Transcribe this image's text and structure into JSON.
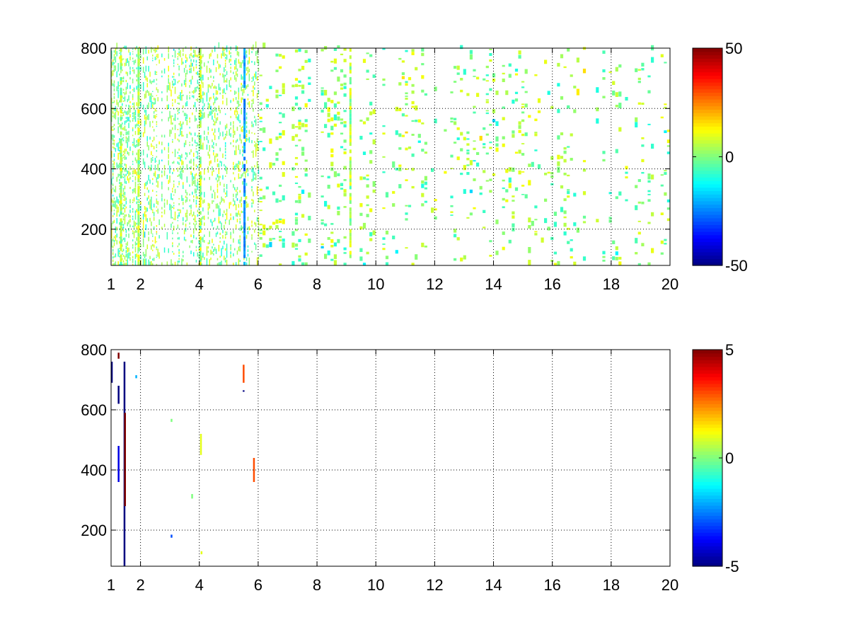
{
  "chart_data": [
    {
      "type": "heatmap",
      "title": "",
      "xlabel": "",
      "ylabel": "",
      "xlim": [
        1,
        20
      ],
      "ylim": [
        80,
        800
      ],
      "x_ticks": [
        1,
        2,
        4,
        6,
        8,
        10,
        12,
        14,
        16,
        18,
        20
      ],
      "x_tick_labels": [
        "1",
        "2",
        "4",
        "6",
        "8",
        "10",
        "12",
        "14",
        "16",
        "18",
        "20"
      ],
      "y_ticks": [
        200,
        400,
        600,
        800
      ],
      "y_tick_labels": [
        "200",
        "400",
        "600",
        "800"
      ],
      "grid": true,
      "colormap": "jet",
      "clim": [
        -50,
        50
      ],
      "colorbar_ticks": [
        -50,
        0,
        50
      ],
      "colorbar_tick_labels": [
        "-50",
        "0",
        "50"
      ],
      "background": "#ffffff",
      "pattern": "dense scattered cells with values near 0 (green/yellow/cyan), densest for x<6, sparser blocky columns for x>8",
      "notable_columns": [
        1.3,
        1.9,
        4.0,
        5.5,
        9.1
      ],
      "seed": 7
    },
    {
      "type": "heatmap",
      "title": "",
      "xlabel": "",
      "ylabel": "",
      "xlim": [
        1,
        20
      ],
      "ylim": [
        80,
        800
      ],
      "x_ticks": [
        1,
        2,
        4,
        6,
        8,
        10,
        12,
        14,
        16,
        18,
        20
      ],
      "x_tick_labels": [
        "1",
        "2",
        "4",
        "6",
        "8",
        "10",
        "12",
        "14",
        "16",
        "18",
        "20"
      ],
      "y_ticks": [
        200,
        400,
        600,
        800
      ],
      "y_tick_labels": [
        "200",
        "400",
        "600",
        "800"
      ],
      "grid": true,
      "colormap": "jet",
      "clim": [
        -5,
        5
      ],
      "colorbar_ticks": [
        -5,
        0,
        5
      ],
      "colorbar_tick_labels": [
        "-5",
        "0",
        "5"
      ],
      "background": "#ffffff",
      "features": [
        {
          "x": 1.02,
          "y_from": 690,
          "y_to": 760,
          "value": -5
        },
        {
          "x": 1.25,
          "y_from": 770,
          "y_to": 790,
          "value": 5
        },
        {
          "x": 1.25,
          "y_from": 620,
          "y_to": 680,
          "value": -5
        },
        {
          "x": 1.25,
          "y_from": 360,
          "y_to": 480,
          "value": -4
        },
        {
          "x": 1.45,
          "y_from": 80,
          "y_to": 760,
          "value": -5
        },
        {
          "x": 1.47,
          "y_from": 280,
          "y_to": 590,
          "value": 5
        },
        {
          "x": 1.85,
          "y_from": 705,
          "y_to": 715,
          "value": -2
        },
        {
          "x": 3.05,
          "y_from": 560,
          "y_to": 570,
          "value": 0
        },
        {
          "x": 3.05,
          "y_from": 175,
          "y_to": 185,
          "value": -3
        },
        {
          "x": 3.75,
          "y_from": 305,
          "y_to": 320,
          "value": 0
        },
        {
          "x": 4.05,
          "y_from": 450,
          "y_to": 520,
          "value": 1
        },
        {
          "x": 4.07,
          "y_from": 120,
          "y_to": 130,
          "value": 1
        },
        {
          "x": 5.5,
          "y_from": 690,
          "y_to": 750,
          "value": 3
        },
        {
          "x": 5.5,
          "y_from": 660,
          "y_to": 665,
          "value": -5
        },
        {
          "x": 5.85,
          "y_from": 360,
          "y_to": 440,
          "value": 3
        }
      ]
    }
  ]
}
